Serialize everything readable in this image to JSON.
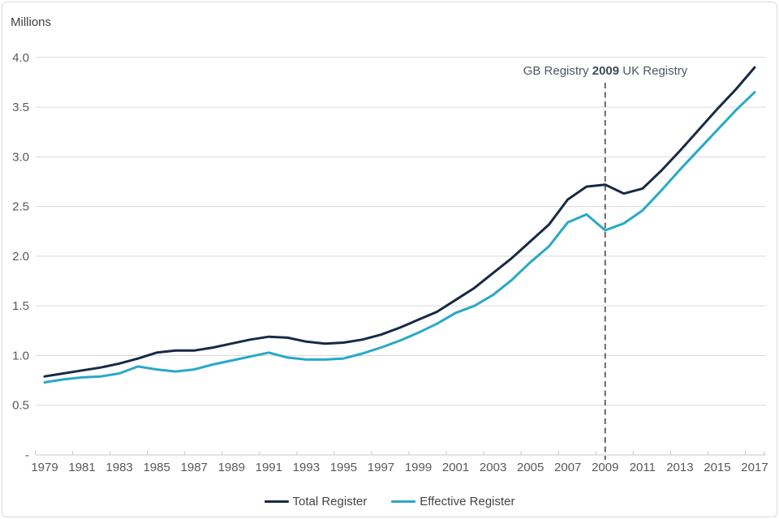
{
  "figure": {
    "units_label": "Millions",
    "annotation": {
      "left": "GB Registry ",
      "year": "2009",
      "right": " UK Registry"
    },
    "legend": [
      {
        "label": "Total Register",
        "color": "#172a45"
      },
      {
        "label": "Effective Register",
        "color": "#27a9c7"
      }
    ],
    "colors": {
      "gridline": "#dadada",
      "axis_line": "#c9c9c9",
      "tick": "#c9c9c9",
      "axis_text": "#595959",
      "dashed_line": "#595959"
    }
  },
  "chart_data": {
    "type": "line",
    "title": "",
    "ylabel": "Millions",
    "xlabel": "",
    "grid": true,
    "legend_position": "bottom",
    "ylim": [
      0,
      4.0
    ],
    "annotation_x": 2009,
    "x": [
      1979,
      1980,
      1981,
      1982,
      1983,
      1984,
      1985,
      1986,
      1987,
      1988,
      1989,
      1990,
      1991,
      1992,
      1993,
      1994,
      1995,
      1996,
      1997,
      1998,
      1999,
      2000,
      2001,
      2002,
      2003,
      2004,
      2005,
      2006,
      2007,
      2008,
      2009,
      2010,
      2011,
      2012,
      2013,
      2014,
      2015,
      2016,
      2017
    ],
    "x_tick_labels": [
      "1979",
      "1981",
      "1983",
      "1985",
      "1987",
      "1989",
      "1991",
      "1993",
      "1995",
      "1997",
      "1999",
      "2001",
      "2003",
      "2005",
      "2007",
      "2009",
      "2011",
      "2013",
      "2015",
      "2017"
    ],
    "y_ticks": [
      {
        "label": "4.0",
        "value": 4.0
      },
      {
        "label": "3.5",
        "value": 3.5
      },
      {
        "label": "3.0",
        "value": 3.0
      },
      {
        "label": "2.5",
        "value": 2.5
      },
      {
        "label": "2.0",
        "value": 2.0
      },
      {
        "label": "1.5",
        "value": 1.5
      },
      {
        "label": "1.0",
        "value": 1.0
      },
      {
        "label": "0.5",
        "value": 0.5
      },
      {
        "label": "-",
        "value": 0.0
      }
    ],
    "series": [
      {
        "name": "Total Register",
        "color": "#172a45",
        "values": [
          0.79,
          0.82,
          0.85,
          0.88,
          0.92,
          0.97,
          1.03,
          1.05,
          1.05,
          1.08,
          1.12,
          1.16,
          1.19,
          1.18,
          1.14,
          1.12,
          1.13,
          1.16,
          1.21,
          1.28,
          1.36,
          1.44,
          1.56,
          1.68,
          1.83,
          1.98,
          2.15,
          2.32,
          2.57,
          2.7,
          2.72,
          2.63,
          2.68,
          2.86,
          3.06,
          3.27,
          3.48,
          3.68,
          3.9
        ]
      },
      {
        "name": "Effective Register",
        "color": "#27a9c7",
        "values": [
          0.73,
          0.76,
          0.78,
          0.79,
          0.82,
          0.89,
          0.86,
          0.84,
          0.86,
          0.91,
          0.95,
          0.99,
          1.03,
          0.98,
          0.96,
          0.96,
          0.97,
          1.02,
          1.08,
          1.15,
          1.23,
          1.32,
          1.43,
          1.5,
          1.61,
          1.76,
          1.94,
          2.1,
          2.34,
          2.42,
          2.26,
          2.33,
          2.46,
          2.66,
          2.87,
          3.07,
          3.27,
          3.47,
          3.65
        ]
      }
    ]
  }
}
